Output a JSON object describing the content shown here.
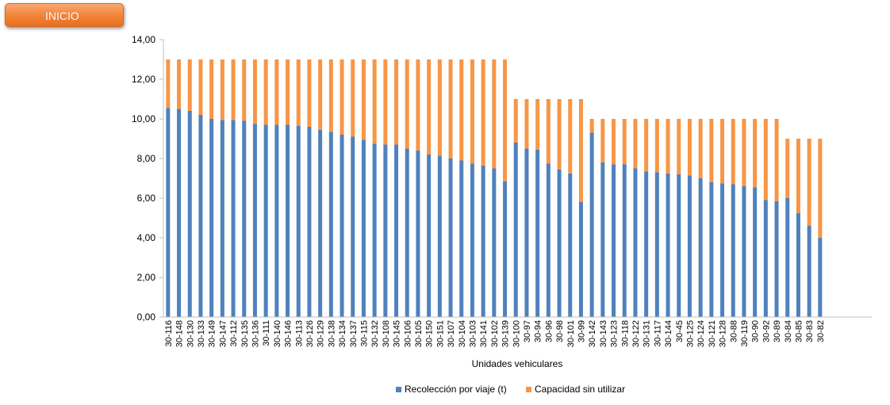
{
  "button": {
    "label": "INICIO"
  },
  "colors": {
    "series1": "#4f81bd",
    "series2": "#f79646",
    "button": "#f28237",
    "axis": "#bfbfbf"
  },
  "chart_data": {
    "type": "bar",
    "stacked": true,
    "xlabel": "Unidades vehiculares",
    "ylabel": "",
    "ylim": [
      0,
      14
    ],
    "yticks": [
      0,
      2,
      4,
      6,
      8,
      10,
      12,
      14
    ],
    "ytick_labels": [
      "0,00",
      "2,00",
      "4,00",
      "6,00",
      "8,00",
      "10,00",
      "12,00",
      "14,00"
    ],
    "grid": false,
    "legend": "bottom",
    "categories": [
      "30-116",
      "30-148",
      "30-130",
      "30-133",
      "30-149",
      "30-147",
      "30-112",
      "30-135",
      "30-136",
      "30-111",
      "30-140",
      "30-146",
      "30-113",
      "30-126",
      "30-129",
      "30-138",
      "30-134",
      "30-137",
      "30-115",
      "30-132",
      "30-108",
      "30-145",
      "30-106",
      "30-105",
      "30-150",
      "30-151",
      "30-107",
      "30-104",
      "30-103",
      "30-141",
      "30-102",
      "30-139",
      "30-100",
      "30-97",
      "30-94",
      "30-96",
      "30-98",
      "30-101",
      "30-99",
      "30-142",
      "30-143",
      "30-123",
      "30-118",
      "30-122",
      "30-131",
      "30-117",
      "30-144",
      "30-45",
      "30-125",
      "30-124",
      "30-121",
      "30-128",
      "30-88",
      "30-119",
      "30-90",
      "30-92",
      "30-89",
      "30-84",
      "30-85",
      "30-83",
      "30-82"
    ],
    "series": [
      {
        "name": "Recolección por viaje (t)",
        "values": [
          10.55,
          10.5,
          10.4,
          10.2,
          10.0,
          9.95,
          9.95,
          9.9,
          9.75,
          9.7,
          9.7,
          9.7,
          9.65,
          9.6,
          9.45,
          9.35,
          9.2,
          9.1,
          8.95,
          8.75,
          8.7,
          8.7,
          8.5,
          8.4,
          8.2,
          8.15,
          8.0,
          7.9,
          7.75,
          7.65,
          7.5,
          6.85,
          8.8,
          8.5,
          8.45,
          7.75,
          7.45,
          7.25,
          5.8,
          9.3,
          7.8,
          7.7,
          7.7,
          7.5,
          7.35,
          7.3,
          7.25,
          7.2,
          7.15,
          7.0,
          6.8,
          6.75,
          6.7,
          6.6,
          6.55,
          5.9,
          5.85,
          6.0,
          5.25,
          4.6,
          4.0
        ]
      },
      {
        "name": "Capacidad sin utilizar",
        "values": [
          2.45,
          2.5,
          2.6,
          2.8,
          3.0,
          3.05,
          3.05,
          3.1,
          3.25,
          3.3,
          3.3,
          3.3,
          3.35,
          3.4,
          3.55,
          3.65,
          3.8,
          3.9,
          4.05,
          4.25,
          4.3,
          4.3,
          4.5,
          4.6,
          4.8,
          4.85,
          5.0,
          5.1,
          5.25,
          5.35,
          5.5,
          6.15,
          2.2,
          2.5,
          2.55,
          3.25,
          3.55,
          3.75,
          5.2,
          0.7,
          2.2,
          2.3,
          2.3,
          2.5,
          2.65,
          2.7,
          2.75,
          2.8,
          2.85,
          3.0,
          3.2,
          3.25,
          3.3,
          3.4,
          3.45,
          4.1,
          4.15,
          3.0,
          3.75,
          4.4,
          5.0
        ]
      }
    ]
  }
}
